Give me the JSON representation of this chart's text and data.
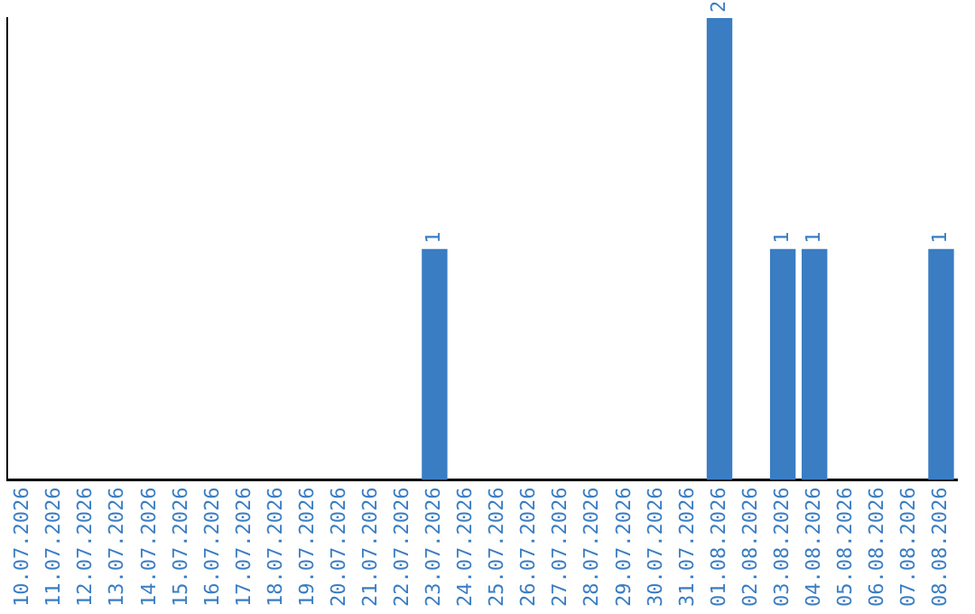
{
  "chart_data": {
    "type": "bar",
    "categories": [
      "10.07.2026",
      "11.07.2026",
      "12.07.2026",
      "13.07.2026",
      "14.07.2026",
      "15.07.2026",
      "16.07.2026",
      "17.07.2026",
      "18.07.2026",
      "19.07.2026",
      "20.07.2026",
      "21.07.2026",
      "22.07.2026",
      "23.07.2026",
      "24.07.2026",
      "25.07.2026",
      "26.07.2026",
      "27.07.2026",
      "28.07.2026",
      "29.07.2026",
      "30.07.2026",
      "31.07.2026",
      "01.08.2026",
      "02.08.2026",
      "03.08.2026",
      "04.08.2026",
      "05.08.2026",
      "06.08.2026",
      "07.08.2026",
      "08.08.2026"
    ],
    "values": [
      null,
      null,
      null,
      null,
      null,
      null,
      null,
      null,
      null,
      null,
      null,
      null,
      null,
      1,
      null,
      null,
      null,
      null,
      null,
      null,
      null,
      null,
      2,
      null,
      1,
      1,
      null,
      null,
      null,
      1
    ],
    "data_labels": true,
    "color": "#3b7dc3",
    "grid": false,
    "legend": false,
    "tick_labels": "x"
  }
}
